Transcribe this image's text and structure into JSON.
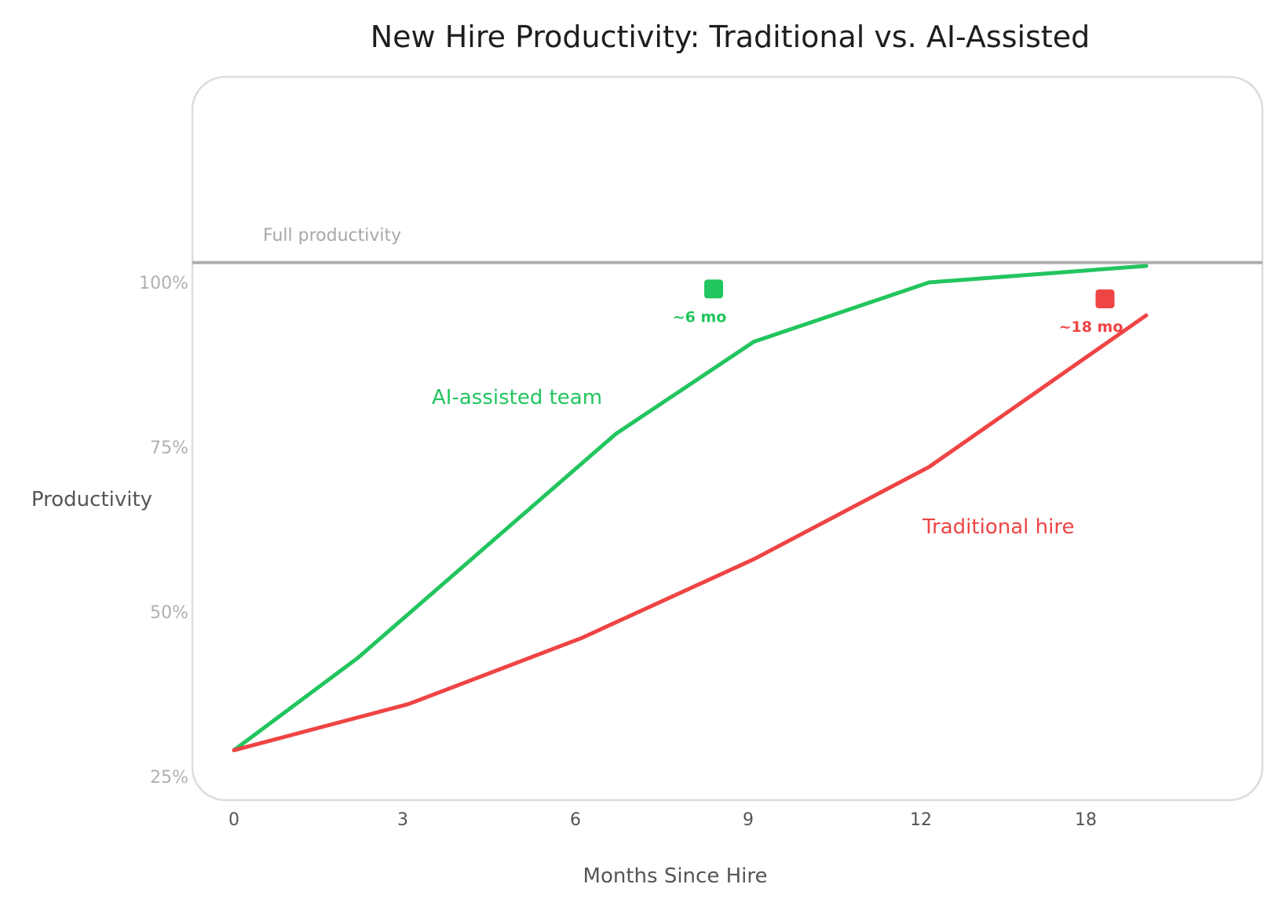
{
  "chart_data": {
    "type": "line",
    "title": "New Hire Productivity: Traditional vs. AI-Assisted",
    "xlabel": "Months Since Hire",
    "ylabel": "Productivity",
    "categories": [
      "0",
      "3",
      "6",
      "9",
      "12",
      "18"
    ],
    "y_ticks": [
      "25%",
      "50%",
      "75%",
      "100%"
    ],
    "ylim": [
      25,
      100
    ],
    "reference_line": {
      "label": "Full productivity",
      "value": 103,
      "color": "#b0b0b0"
    },
    "series": [
      {
        "name": "AI-assisted team",
        "color": "#22c55e",
        "points": [
          [
            0,
            29
          ],
          [
            2.2,
            43
          ],
          [
            6.7,
            77
          ],
          [
            9.1,
            91
          ],
          [
            12.3,
            100
          ],
          [
            20.2,
            102.5
          ]
        ]
      },
      {
        "name": "Traditional hire",
        "color": "#ef4444",
        "points": [
          [
            0,
            29
          ],
          [
            3.1,
            36
          ],
          [
            6.1,
            46
          ],
          [
            9.1,
            58
          ],
          [
            12.3,
            72
          ],
          [
            20.2,
            95
          ]
        ]
      }
    ],
    "markers": [
      {
        "label": "~6 mo",
        "x": 8.4,
        "y": 99,
        "color": "#22c55e"
      },
      {
        "label": "~18 mo",
        "x": 18.7,
        "y": 97.5,
        "color": "#ef4444"
      }
    ],
    "grid": false,
    "legend": "none"
  }
}
